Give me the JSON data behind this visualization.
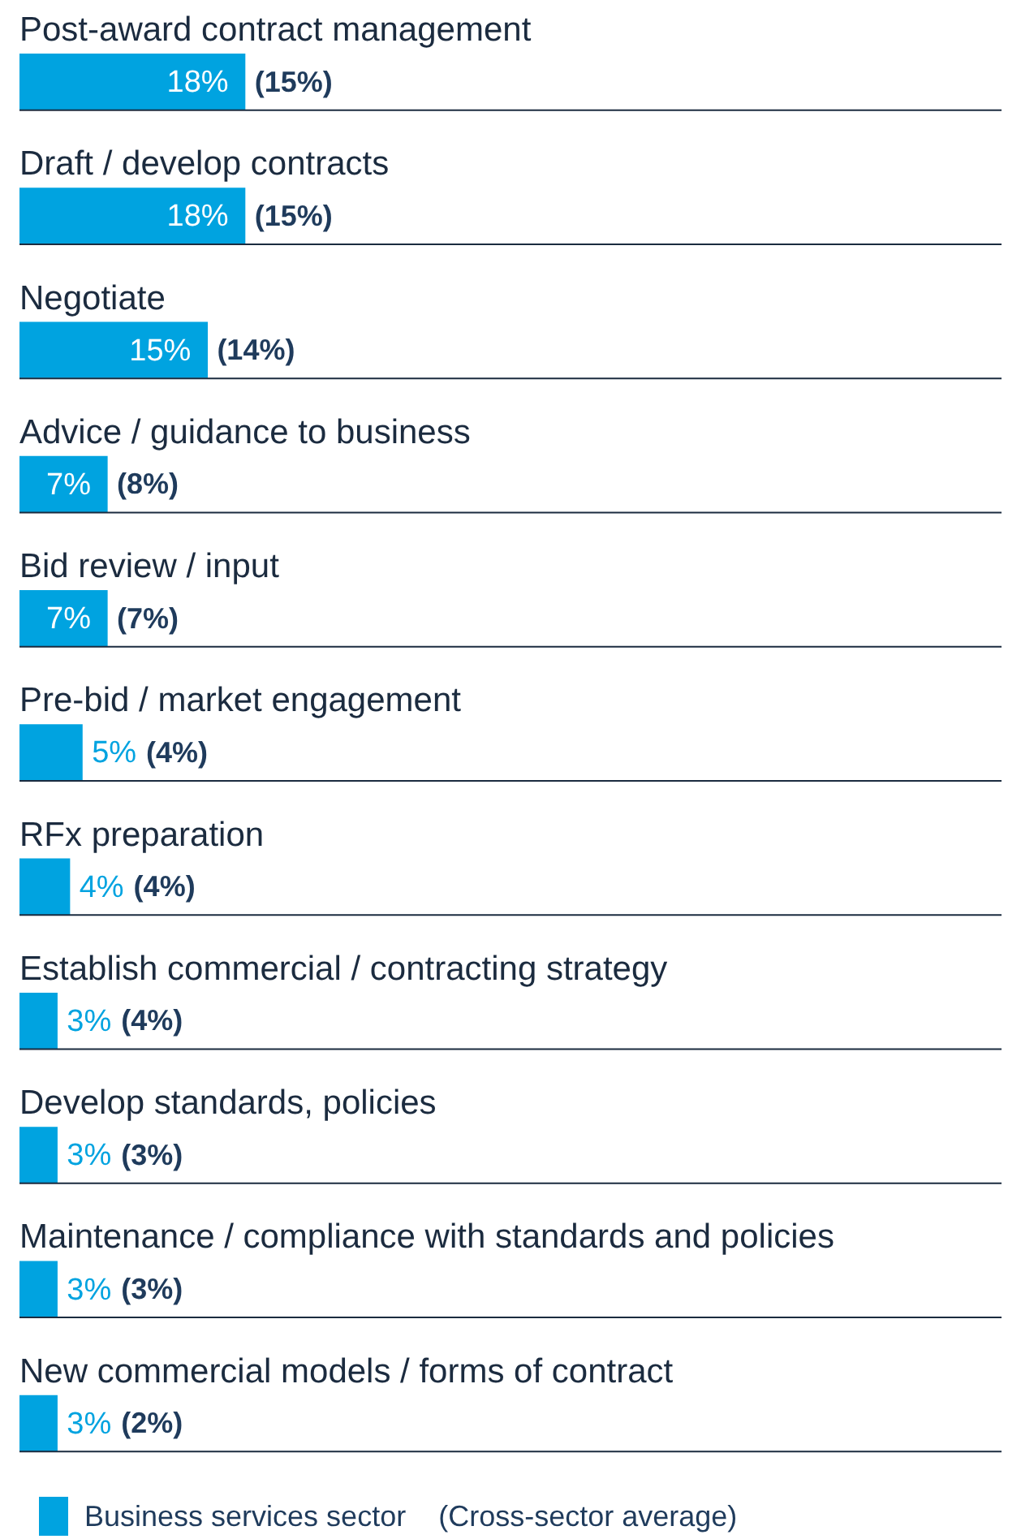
{
  "chart_data": {
    "type": "bar",
    "orientation": "horizontal",
    "categories": [
      "Post-award contract management",
      "Draft / develop contracts",
      "Negotiate",
      "Advice / guidance to business",
      "Bid review / input",
      "Pre-bid / market engagement",
      "RFx preparation",
      "Establish commercial / contracting strategy",
      "Develop standards, policies",
      "Maintenance / compliance with standards and policies",
      "New commercial models / forms of contract"
    ],
    "tick_labels": false,
    "legend": "bottom",
    "series": [
      {
        "name": "Business services sector",
        "color": "#00a3e0",
        "values": [
          18,
          18,
          15,
          7,
          7,
          5,
          4,
          3,
          3,
          3,
          3
        ],
        "value_labels": [
          "18%",
          "18%",
          "15%",
          "7%",
          "7%",
          "5%",
          "4%",
          "3%",
          "3%",
          "3%",
          "3%"
        ]
      }
    ],
    "annotations": [
      "(15%)",
      "(15%)",
      "(14%)",
      "(8%)",
      "(7%)",
      "(4%)",
      "(4%)",
      "(4%)",
      "(3%)",
      "(3%)",
      "(2%)",
      "(Cross-sector average)"
    ]
  }
}
